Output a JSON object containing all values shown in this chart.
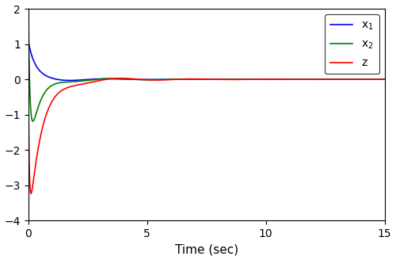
{
  "xlabel": "Time (sec)",
  "xlim": [
    0,
    15
  ],
  "ylim": [
    -4,
    2
  ],
  "yticks": [
    -4,
    -3,
    -2,
    -1,
    0,
    1,
    2
  ],
  "xticks": [
    0,
    5,
    10,
    15
  ],
  "line_colors": [
    "blue",
    "green",
    "red"
  ],
  "line_labels": [
    "x$_1$",
    "x$_2$",
    "z"
  ],
  "legend_loc": "upper right",
  "t_span": [
    0,
    15
  ],
  "figsize": [
    5.0,
    3.28
  ],
  "dpi": 100,
  "background_color": "#ffffff",
  "linewidth": 1.2
}
